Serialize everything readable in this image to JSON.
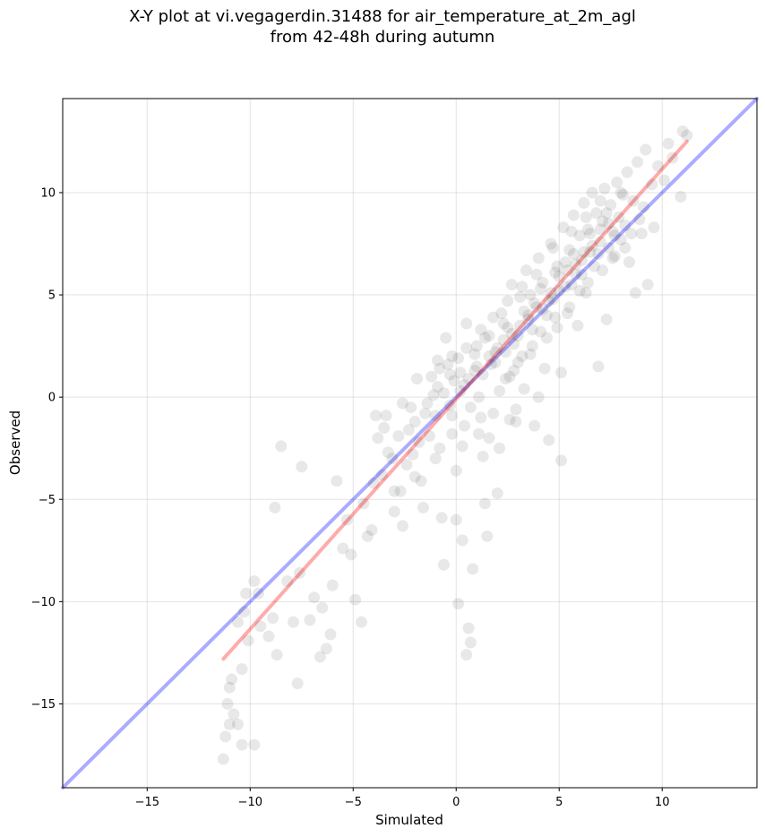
{
  "chart_data": {
    "type": "scatter",
    "title_line1": "X-Y plot at vi.vegagerdin.31488 for air_temperature_at_2m_agl",
    "title_line2": "from 42-48h during autumn",
    "xlabel": "Simulated",
    "ylabel": "Observed",
    "xlim": [
      -19.1,
      14.6
    ],
    "ylim": [
      -19.1,
      14.6
    ],
    "xticks": [
      -15,
      -10,
      -5,
      0,
      5,
      10
    ],
    "yticks": [
      -15,
      -10,
      -5,
      0,
      5,
      10
    ],
    "xtick_labels": [
      "−15",
      "−10",
      "−5",
      "0",
      "5",
      "10"
    ],
    "ytick_labels": [
      "−15",
      "−10",
      "−5",
      "0",
      "5",
      "10"
    ],
    "grid": true,
    "point_color": "#000000",
    "identity_line": {
      "x": [
        -19.1,
        14.6
      ],
      "y": [
        -19.1,
        14.6
      ],
      "color": "#0000ff"
    },
    "regression_line": {
      "x": [
        -11.3,
        11.2
      ],
      "y": [
        -12.8,
        12.5
      ],
      "color": "#ff0000"
    },
    "points": [
      [
        -11.3,
        -17.7
      ],
      [
        -11.2,
        -16.6
      ],
      [
        -11.0,
        -16.0
      ],
      [
        -10.6,
        -16.0
      ],
      [
        -10.4,
        -17.0
      ],
      [
        -9.8,
        -17.0
      ],
      [
        -11.1,
        -15.0
      ],
      [
        -10.8,
        -15.5
      ],
      [
        -11.0,
        -14.2
      ],
      [
        -10.9,
        -13.8
      ],
      [
        -10.4,
        -13.3
      ],
      [
        -10.1,
        -11.9
      ],
      [
        -10.6,
        -11.0
      ],
      [
        -10.3,
        -10.5
      ],
      [
        -10.2,
        -9.6
      ],
      [
        -9.8,
        -9.0
      ],
      [
        -9.6,
        -9.6
      ],
      [
        -9.5,
        -11.2
      ],
      [
        -9.1,
        -11.7
      ],
      [
        -8.9,
        -10.8
      ],
      [
        -8.7,
        -12.6
      ],
      [
        -8.8,
        -5.4
      ],
      [
        -8.5,
        -2.4
      ],
      [
        -8.2,
        -9.0
      ],
      [
        -7.9,
        -11.0
      ],
      [
        -7.6,
        -8.6
      ],
      [
        -7.7,
        -14.0
      ],
      [
        -7.5,
        -3.4
      ],
      [
        -7.1,
        -10.9
      ],
      [
        -6.9,
        -9.8
      ],
      [
        -6.6,
        -12.7
      ],
      [
        -6.5,
        -10.3
      ],
      [
        -6.3,
        -12.3
      ],
      [
        -6.1,
        -11.6
      ],
      [
        -6.0,
        -9.2
      ],
      [
        -5.8,
        -4.1
      ],
      [
        -5.5,
        -7.4
      ],
      [
        -5.3,
        -6.0
      ],
      [
        -5.1,
        -7.7
      ],
      [
        -4.9,
        -9.9
      ],
      [
        -4.6,
        -11.0
      ],
      [
        -4.5,
        -5.2
      ],
      [
        -4.3,
        -6.8
      ],
      [
        -4.1,
        -6.5
      ],
      [
        -3.9,
        -0.9
      ],
      [
        -3.8,
        -2.0
      ],
      [
        -3.5,
        -1.5
      ],
      [
        -3.3,
        -2.7
      ],
      [
        -3.1,
        -3.0
      ],
      [
        -3.0,
        -5.6
      ],
      [
        -2.8,
        -1.9
      ],
      [
        -2.7,
        -4.6
      ],
      [
        -2.6,
        -6.3
      ],
      [
        -2.4,
        -3.3
      ],
      [
        -2.2,
        -0.5
      ],
      [
        -2.0,
        -1.2
      ],
      [
        -1.8,
        -2.2
      ],
      [
        -1.7,
        -4.1
      ],
      [
        -1.6,
        -5.4
      ],
      [
        -1.4,
        -0.3
      ],
      [
        -1.2,
        1.0
      ],
      [
        -1.0,
        -0.9
      ],
      [
        -0.9,
        0.5
      ],
      [
        -0.8,
        -2.5
      ],
      [
        -0.7,
        -5.9
      ],
      [
        -0.6,
        -8.2
      ],
      [
        -0.5,
        2.9
      ],
      [
        -0.4,
        1.6
      ],
      [
        -0.3,
        -0.4
      ],
      [
        -0.2,
        -1.8
      ],
      [
        -0.1,
        0.8
      ],
      [
        0.0,
        -3.6
      ],
      [
        0.0,
        -6.0
      ],
      [
        0.1,
        1.9
      ],
      [
        0.1,
        -10.1
      ],
      [
        0.2,
        0.3
      ],
      [
        0.3,
        -7.0
      ],
      [
        0.4,
        -1.4
      ],
      [
        0.5,
        3.6
      ],
      [
        0.5,
        -12.6
      ],
      [
        0.6,
        -11.3
      ],
      [
        0.7,
        -12.0
      ],
      [
        0.8,
        -8.4
      ],
      [
        0.9,
        1.3
      ],
      [
        1.0,
        2.5
      ],
      [
        1.1,
        0.0
      ],
      [
        1.2,
        -1.0
      ],
      [
        1.3,
        -2.9
      ],
      [
        1.4,
        -5.2
      ],
      [
        1.5,
        -6.8
      ],
      [
        1.6,
        3.0
      ],
      [
        1.7,
        1.6
      ],
      [
        1.8,
        -0.8
      ],
      [
        1.9,
        2.2
      ],
      [
        2.0,
        -4.7
      ],
      [
        2.1,
        -2.5
      ],
      [
        2.2,
        4.1
      ],
      [
        2.3,
        2.8
      ],
      [
        2.4,
        0.9
      ],
      [
        2.5,
        3.4
      ],
      [
        2.6,
        -1.1
      ],
      [
        2.7,
        5.5
      ],
      [
        2.8,
        1.3
      ],
      [
        2.9,
        -0.6
      ],
      [
        3.0,
        3.0
      ],
      [
        3.1,
        4.9
      ],
      [
        3.2,
        2.0
      ],
      [
        3.3,
        0.4
      ],
      [
        3.4,
        6.2
      ],
      [
        3.5,
        3.8
      ],
      [
        3.6,
        5.0
      ],
      [
        3.7,
        2.5
      ],
      [
        3.8,
        -1.4
      ],
      [
        3.9,
        4.4
      ],
      [
        4.0,
        6.8
      ],
      [
        4.1,
        3.2
      ],
      [
        4.2,
        5.6
      ],
      [
        4.3,
        1.4
      ],
      [
        4.4,
        4.0
      ],
      [
        4.5,
        -2.1
      ],
      [
        4.6,
        7.5
      ],
      [
        4.7,
        4.8
      ],
      [
        4.8,
        6.1
      ],
      [
        4.9,
        3.4
      ],
      [
        5.0,
        5.2
      ],
      [
        5.1,
        -3.1
      ],
      [
        5.2,
        8.3
      ],
      [
        5.3,
        6.6
      ],
      [
        5.4,
        4.1
      ],
      [
        5.5,
        7.2
      ],
      [
        5.6,
        5.5
      ],
      [
        5.7,
        8.9
      ],
      [
        5.8,
        6.0
      ],
      [
        5.9,
        3.5
      ],
      [
        6.0,
        7.9
      ],
      [
        6.1,
        6.7
      ],
      [
        6.2,
        9.5
      ],
      [
        6.3,
        5.1
      ],
      [
        6.4,
        8.2
      ],
      [
        6.5,
        7.1
      ],
      [
        6.6,
        10.0
      ],
      [
        6.7,
        6.4
      ],
      [
        6.8,
        9.0
      ],
      [
        6.9,
        1.5
      ],
      [
        7.0,
        7.6
      ],
      [
        7.1,
        8.6
      ],
      [
        7.2,
        10.2
      ],
      [
        7.3,
        3.8
      ],
      [
        7.4,
        7.3
      ],
      [
        7.5,
        9.4
      ],
      [
        7.6,
        8.1
      ],
      [
        7.7,
        6.9
      ],
      [
        7.8,
        10.5
      ],
      [
        7.9,
        8.8
      ],
      [
        8.0,
        7.7
      ],
      [
        8.1,
        9.9
      ],
      [
        8.2,
        8.4
      ],
      [
        8.3,
        11.0
      ],
      [
        8.4,
        6.6
      ],
      [
        8.6,
        9.6
      ],
      [
        8.7,
        5.1
      ],
      [
        8.8,
        11.5
      ],
      [
        9.0,
        8.0
      ],
      [
        9.2,
        12.1
      ],
      [
        9.3,
        5.5
      ],
      [
        9.5,
        10.4
      ],
      [
        9.6,
        8.3
      ],
      [
        9.8,
        11.3
      ],
      [
        10.1,
        10.6
      ],
      [
        10.3,
        12.4
      ],
      [
        10.5,
        11.7
      ],
      [
        10.9,
        9.8
      ],
      [
        11.0,
        13.0
      ],
      [
        11.2,
        12.8
      ],
      [
        0.2,
        1.2
      ],
      [
        0.6,
        0.9
      ],
      [
        1.0,
        1.5
      ],
      [
        1.3,
        1.1
      ],
      [
        1.6,
        2.0
      ],
      [
        2.0,
        2.4
      ],
      [
        2.4,
        2.2
      ],
      [
        2.7,
        3.1
      ],
      [
        3.1,
        3.5
      ],
      [
        3.5,
        4.0
      ],
      [
        3.8,
        4.6
      ],
      [
        4.2,
        4.3
      ],
      [
        4.6,
        5.1
      ],
      [
        5.0,
        5.9
      ],
      [
        5.4,
        6.2
      ],
      [
        5.8,
        6.5
      ],
      [
        6.2,
        7.1
      ],
      [
        6.6,
        7.4
      ],
      [
        7.0,
        8.2
      ],
      [
        7.4,
        8.5
      ],
      [
        -0.6,
        0.2
      ],
      [
        -0.3,
        1.1
      ],
      [
        0.4,
        0.6
      ],
      [
        0.9,
        2.1
      ],
      [
        1.4,
        2.9
      ],
      [
        1.9,
        1.7
      ],
      [
        2.3,
        3.6
      ],
      [
        2.8,
        2.6
      ],
      [
        3.3,
        4.2
      ],
      [
        3.7,
        3.3
      ],
      [
        4.1,
        5.3
      ],
      [
        4.5,
        4.7
      ],
      [
        4.9,
        6.4
      ],
      [
        5.3,
        5.4
      ],
      [
        5.7,
        7.0
      ],
      [
        6.1,
        6.0
      ],
      [
        6.5,
        8.0
      ],
      [
        6.9,
        7.0
      ],
      [
        7.3,
        9.0
      ],
      [
        7.7,
        7.9
      ],
      [
        -1.5,
        -0.8
      ],
      [
        -1.1,
        0.1
      ],
      [
        -0.8,
        1.4
      ],
      [
        -2.3,
        -1.6
      ],
      [
        -2.6,
        -0.3
      ],
      [
        -3.4,
        -0.9
      ],
      [
        -1.9,
        0.9
      ],
      [
        -0.2,
        -0.9
      ],
      [
        0.7,
        -0.5
      ],
      [
        1.1,
        -1.8
      ],
      [
        2.1,
        0.3
      ],
      [
        2.6,
        1.0
      ],
      [
        3.0,
        1.7
      ],
      [
        3.6,
        2.1
      ],
      [
        4.4,
        2.9
      ],
      [
        4.8,
        3.9
      ],
      [
        5.5,
        4.4
      ],
      [
        6.0,
        5.2
      ],
      [
        6.4,
        5.6
      ],
      [
        7.1,
        6.2
      ],
      [
        7.6,
        6.8
      ],
      [
        8.2,
        7.3
      ],
      [
        8.5,
        8.0
      ],
      [
        8.9,
        8.7
      ],
      [
        9.1,
        9.3
      ],
      [
        8.0,
        10.0
      ],
      [
        7.0,
        9.6
      ],
      [
        6.3,
        8.8
      ],
      [
        5.6,
        8.1
      ],
      [
        4.7,
        7.3
      ],
      [
        3.9,
        6.0
      ],
      [
        3.2,
        5.4
      ],
      [
        2.5,
        4.7
      ],
      [
        1.8,
        3.9
      ],
      [
        1.2,
        3.3
      ],
      [
        0.5,
        2.4
      ],
      [
        -0.2,
        2.0
      ],
      [
        -0.9,
        1.8
      ],
      [
        -1.3,
        -1.9
      ],
      [
        -2.1,
        -2.8
      ],
      [
        -3.6,
        -3.8
      ],
      [
        -4.0,
        -4.2
      ],
      [
        -3.0,
        -4.6
      ],
      [
        -2.0,
        -3.9
      ],
      [
        -1.0,
        -3.0
      ],
      [
        0.3,
        -2.4
      ],
      [
        1.6,
        -2.0
      ],
      [
        2.9,
        -1.2
      ],
      [
        4.0,
        0.0
      ],
      [
        5.1,
        1.2
      ]
    ]
  }
}
